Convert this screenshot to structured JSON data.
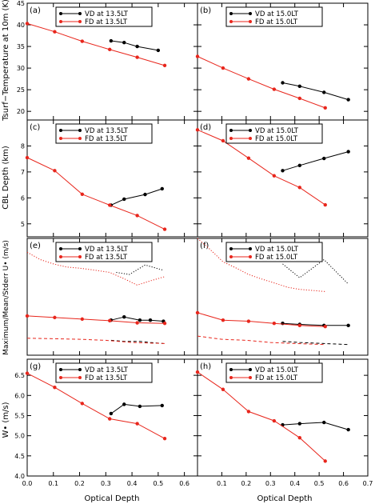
{
  "colors": {
    "vd": "#000000",
    "fd": "#e8261c",
    "frame": "#000000"
  },
  "xaxis": {
    "title": "Optical Depth",
    "left_ticks": [
      "0.0",
      "0.1",
      "0.2",
      "0.3",
      "0.4",
      "0.5",
      "0.6"
    ],
    "left_range": [
      0,
      0.65
    ],
    "right_ticks": [
      "0.1",
      "0.2",
      "0.3",
      "0.4",
      "0.5",
      "0.6",
      "0.7"
    ],
    "right_range": [
      0,
      0.7
    ]
  },
  "rows": [
    {
      "ylabel": "Tsurf−Temperature at 10m (K)",
      "yticks": [
        "20",
        "25",
        "30",
        "35",
        "40",
        "45"
      ],
      "ylim": [
        18,
        45
      ]
    },
    {
      "ylabel": "CBL Depth (km)",
      "yticks": [
        "5",
        "6",
        "7",
        "8"
      ],
      "ylim": [
        4.5,
        9
      ]
    },
    {
      "ylabel": "Maximum/Mean/Stderr U• (m/s)",
      "yticks": [],
      "ylim": [
        0,
        1.1
      ]
    },
    {
      "ylabel": "W• (m/s)",
      "yticks": [
        "4.0",
        "4.5",
        "5.0",
        "5.5",
        "6.0",
        "6.5"
      ],
      "ylim": [
        4.0,
        6.9
      ]
    }
  ],
  "chart_data": [
    {
      "panel": "(a)",
      "type": "line",
      "xlim": [
        0,
        0.65
      ],
      "ylim": [
        18,
        45
      ],
      "legend": "top",
      "series": [
        {
          "name": "VD at 13.5LT",
          "color": "#000000",
          "x": [
            0.32,
            0.37,
            0.42,
            0.5
          ],
          "y": [
            36.3,
            35.9,
            35.0,
            34.1
          ]
        },
        {
          "name": "FD at 13.5LT",
          "color": "#e8261c",
          "x": [
            0,
            0.105,
            0.21,
            0.315,
            0.42,
            0.525
          ],
          "y": [
            40.3,
            38.4,
            36.2,
            34.3,
            32.5,
            30.6
          ]
        }
      ]
    },
    {
      "panel": "(b)",
      "type": "line",
      "xlim": [
        0,
        0.7
      ],
      "ylim": [
        18,
        45
      ],
      "legend": "top",
      "series": [
        {
          "name": "VD at 15.0LT",
          "color": "#000000",
          "x": [
            0.35,
            0.42,
            0.52,
            0.62
          ],
          "y": [
            26.6,
            25.8,
            24.4,
            22.7
          ]
        },
        {
          "name": "FD at 15.0LT",
          "color": "#e8261c",
          "x": [
            0,
            0.105,
            0.21,
            0.315,
            0.42,
            0.525
          ],
          "y": [
            32.7,
            30.0,
            27.5,
            25.1,
            23.0,
            20.8
          ]
        }
      ]
    },
    {
      "panel": "(c)",
      "type": "line",
      "xlim": [
        0,
        0.65
      ],
      "ylim": [
        4.5,
        9
      ],
      "legend": "top",
      "series": [
        {
          "name": "VD at 13.5LT",
          "color": "#000000",
          "x": [
            0.32,
            0.37,
            0.45,
            0.515
          ],
          "y": [
            5.72,
            5.95,
            6.13,
            6.35
          ]
        },
        {
          "name": "FD at 13.5LT",
          "color": "#e8261c",
          "x": [
            0,
            0.105,
            0.21,
            0.315,
            0.42,
            0.525
          ],
          "y": [
            7.55,
            7.05,
            6.14,
            5.72,
            5.32,
            4.79
          ]
        }
      ]
    },
    {
      "panel": "(d)",
      "type": "line",
      "xlim": [
        0,
        0.7
      ],
      "ylim": [
        4.5,
        9
      ],
      "legend": "top",
      "series": [
        {
          "name": "VD at 15.0LT",
          "color": "#000000",
          "x": [
            0.35,
            0.42,
            0.52,
            0.62
          ],
          "y": [
            7.05,
            7.25,
            7.52,
            7.78
          ]
        },
        {
          "name": "FD at 15.0LT",
          "color": "#e8261c",
          "x": [
            0,
            0.105,
            0.21,
            0.315,
            0.42,
            0.525
          ],
          "y": [
            8.62,
            8.2,
            7.53,
            6.85,
            6.4,
            5.73
          ]
        }
      ]
    },
    {
      "panel": "(e)",
      "type": "line",
      "xlim": [
        0,
        0.65
      ],
      "ylim": [
        0,
        1.1
      ],
      "legend": "top",
      "series": [
        {
          "name": "VD at 13.5LT",
          "color": "#000000",
          "x": [
            0.32,
            0.37,
            0.43,
            0.47,
            0.52
          ],
          "y": [
            0.33,
            0.36,
            0.33,
            0.33,
            0.32
          ]
        },
        {
          "name": "FD at 13.5LT",
          "color": "#e8261c",
          "x": [
            0,
            0.105,
            0.21,
            0.315,
            0.42,
            0.525
          ],
          "y": [
            0.37,
            0.355,
            0.34,
            0.325,
            0.305,
            0.3
          ]
        },
        {
          "name": "",
          "style": "dotted",
          "color": "#000000",
          "x": [
            0.34,
            0.39,
            0.45,
            0.52
          ],
          "y": [
            0.78,
            0.76,
            0.85,
            0.8
          ]
        },
        {
          "name": "",
          "style": "dotted",
          "color": "#e8261c",
          "x": [
            0,
            0.05,
            0.1,
            0.15,
            0.2,
            0.26,
            0.315,
            0.37,
            0.42,
            0.47,
            0.525
          ],
          "y": [
            0.97,
            0.9,
            0.86,
            0.83,
            0.82,
            0.8,
            0.78,
            0.72,
            0.66,
            0.7,
            0.74
          ]
        },
        {
          "name": "",
          "style": "dashed",
          "color": "#000000",
          "x": [
            0.32,
            0.37,
            0.43,
            0.47,
            0.52
          ],
          "y": [
            0.14,
            0.13,
            0.13,
            0.12,
            0.11
          ]
        },
        {
          "name": "",
          "style": "dashed",
          "color": "#e8261c",
          "x": [
            0,
            0.1,
            0.2,
            0.3,
            0.4,
            0.525
          ],
          "y": [
            0.16,
            0.155,
            0.15,
            0.14,
            0.12,
            0.11
          ]
        }
      ]
    },
    {
      "panel": "(f)",
      "type": "line",
      "xlim": [
        0,
        0.7
      ],
      "ylim": [
        0,
        1.1
      ],
      "legend": "top",
      "series": [
        {
          "name": "VD at 15.0LT",
          "color": "#000000",
          "x": [
            0.35,
            0.42,
            0.52,
            0.62
          ],
          "y": [
            0.3,
            0.29,
            0.28,
            0.28
          ]
        },
        {
          "name": "FD at 15.0LT",
          "color": "#e8261c",
          "x": [
            0,
            0.105,
            0.21,
            0.315,
            0.42,
            0.525
          ],
          "y": [
            0.4,
            0.33,
            0.32,
            0.3,
            0.28,
            0.27
          ]
        },
        {
          "name": "",
          "style": "dotted",
          "color": "#000000",
          "x": [
            0.35,
            0.42,
            0.52,
            0.62
          ],
          "y": [
            0.86,
            0.73,
            0.9,
            0.67
          ]
        },
        {
          "name": "",
          "style": "dotted",
          "color": "#e8261c",
          "x": [
            0,
            0.05,
            0.105,
            0.16,
            0.21,
            0.26,
            0.315,
            0.37,
            0.42,
            0.47,
            0.525
          ],
          "y": [
            1.1,
            1.0,
            0.88,
            0.82,
            0.76,
            0.72,
            0.68,
            0.64,
            0.62,
            0.61,
            0.6
          ]
        },
        {
          "name": "",
          "style": "dashed",
          "color": "#000000",
          "x": [
            0.35,
            0.42,
            0.52,
            0.62
          ],
          "y": [
            0.13,
            0.12,
            0.11,
            0.1
          ]
        },
        {
          "name": "",
          "style": "dashed",
          "color": "#e8261c",
          "x": [
            0,
            0.1,
            0.2,
            0.3,
            0.4,
            0.525
          ],
          "y": [
            0.18,
            0.15,
            0.14,
            0.12,
            0.11,
            0.1
          ]
        }
      ]
    },
    {
      "panel": "(g)",
      "type": "line",
      "xlim": [
        0,
        0.65
      ],
      "ylim": [
        4.0,
        6.9
      ],
      "legend": "top",
      "series": [
        {
          "name": "VD at 13.5LT",
          "color": "#000000",
          "x": [
            0.32,
            0.37,
            0.43,
            0.515
          ],
          "y": [
            5.55,
            5.78,
            5.73,
            5.75
          ]
        },
        {
          "name": "FD at 13.5LT",
          "color": "#e8261c",
          "x": [
            0,
            0.105,
            0.21,
            0.315,
            0.42,
            0.525
          ],
          "y": [
            6.55,
            6.2,
            5.8,
            5.42,
            5.3,
            4.93
          ]
        }
      ]
    },
    {
      "panel": "(h)",
      "type": "line",
      "xlim": [
        0,
        0.7
      ],
      "ylim": [
        4.0,
        6.9
      ],
      "legend": "top",
      "series": [
        {
          "name": "VD at 15.0LT",
          "color": "#000000",
          "x": [
            0.35,
            0.42,
            0.52,
            0.62
          ],
          "y": [
            5.27,
            5.3,
            5.33,
            5.15
          ]
        },
        {
          "name": "FD at 15.0LT",
          "color": "#e8261c",
          "x": [
            0,
            0.105,
            0.21,
            0.315,
            0.42,
            0.525
          ],
          "y": [
            6.58,
            6.15,
            5.6,
            5.37,
            4.95,
            4.37
          ]
        }
      ]
    }
  ]
}
